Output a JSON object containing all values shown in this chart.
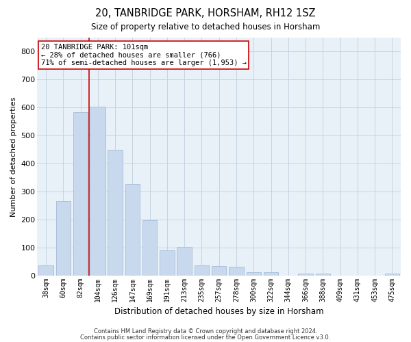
{
  "title1": "20, TANBRIDGE PARK, HORSHAM, RH12 1SZ",
  "title2": "Size of property relative to detached houses in Horsham",
  "xlabel": "Distribution of detached houses by size in Horsham",
  "ylabel": "Number of detached properties",
  "categories": [
    "38sqm",
    "60sqm",
    "82sqm",
    "104sqm",
    "126sqm",
    "147sqm",
    "169sqm",
    "191sqm",
    "213sqm",
    "235sqm",
    "257sqm",
    "278sqm",
    "300sqm",
    "322sqm",
    "344sqm",
    "366sqm",
    "388sqm",
    "409sqm",
    "431sqm",
    "453sqm",
    "475sqm"
  ],
  "values": [
    37,
    267,
    585,
    603,
    450,
    328,
    197,
    90,
    103,
    37,
    35,
    32,
    13,
    13,
    0,
    8,
    8,
    0,
    0,
    0,
    8
  ],
  "bar_color": "#c8d9ee",
  "bar_edge_color": "#9ab4d4",
  "vline_color": "#cc0000",
  "vline_x_index": 3,
  "annotation_text": "20 TANBRIDGE PARK: 101sqm\n← 28% of detached houses are smaller (766)\n71% of semi-detached houses are larger (1,953) →",
  "annotation_box_facecolor": "#ffffff",
  "annotation_box_edgecolor": "#cc0000",
  "grid_color": "#c0d0e0",
  "background_color": "#e8f0f8",
  "footer1": "Contains HM Land Registry data © Crown copyright and database right 2024.",
  "footer2": "Contains public sector information licensed under the Open Government Licence v3.0.",
  "ylim": [
    0,
    850
  ],
  "yticks": [
    0,
    100,
    200,
    300,
    400,
    500,
    600,
    700,
    800
  ],
  "title1_fontsize": 10.5,
  "title2_fontsize": 8.5,
  "xlabel_fontsize": 8.5,
  "ylabel_fontsize": 8,
  "xtick_fontsize": 7,
  "ytick_fontsize": 8,
  "ann_fontsize": 7.5,
  "footer_fontsize": 6
}
